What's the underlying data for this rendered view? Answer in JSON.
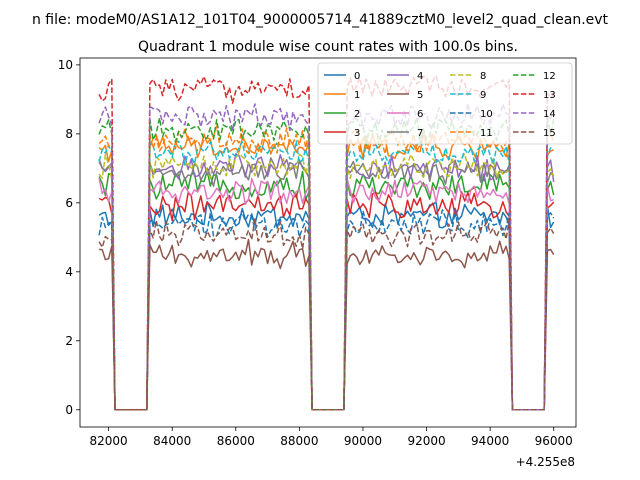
{
  "chart_data": {
    "type": "line",
    "suptitle": "n file: modeM0/AS1A12_101T04_9000005714_41889cztM0_level2_quad_clean.evt",
    "title": "Quadrant 1 module wise count rates with 100.0s bins.",
    "xlabel": "",
    "ylabel": "",
    "x_offset_label": "+4.255e8",
    "xlim": [
      81100,
      96700
    ],
    "ylim": [
      -0.5,
      10.2
    ],
    "xticks": [
      82000,
      84000,
      86000,
      88000,
      90000,
      92000,
      94000,
      96000
    ],
    "xtick_labels": [
      "82000",
      "84000",
      "86000",
      "88000",
      "90000",
      "92000",
      "94000",
      "96000"
    ],
    "yticks": [
      0,
      2,
      4,
      6,
      8,
      10
    ],
    "ytick_labels": [
      "0",
      "2",
      "4",
      "6",
      "8",
      "10"
    ],
    "time_profile": {
      "start": 81700,
      "end": 96050,
      "bin": 100,
      "gaps": [
        [
          82150,
          83250
        ],
        [
          88350,
          89500
        ],
        [
          94600,
          95750
        ]
      ]
    },
    "legend": {
      "location": "top-right",
      "columns": 4
    },
    "series": [
      {
        "name": "0",
        "level": 5.6,
        "color": "#1f77b4",
        "dash": "solid"
      },
      {
        "name": "1",
        "level": 7.6,
        "color": "#ff7f0e",
        "dash": "solid"
      },
      {
        "name": "2",
        "level": 6.5,
        "color": "#2ca02c",
        "dash": "solid"
      },
      {
        "name": "3",
        "level": 5.9,
        "color": "#d62728",
        "dash": "solid"
      },
      {
        "name": "4",
        "level": 7.0,
        "color": "#9467bd",
        "dash": "solid"
      },
      {
        "name": "5",
        "level": 4.5,
        "color": "#8c564b",
        "dash": "solid"
      },
      {
        "name": "6",
        "level": 6.3,
        "color": "#e377c2",
        "dash": "solid"
      },
      {
        "name": "7",
        "level": 6.9,
        "color": "#7f7f7f",
        "dash": "solid"
      },
      {
        "name": "8",
        "level": 7.1,
        "color": "#bcbd22",
        "dash": "dashed"
      },
      {
        "name": "9",
        "level": 7.5,
        "color": "#17becf",
        "dash": "dashed"
      },
      {
        "name": "10",
        "level": 5.4,
        "color": "#1f77b4",
        "dash": "dashed"
      },
      {
        "name": "11",
        "level": 7.8,
        "color": "#ff7f0e",
        "dash": "dashed"
      },
      {
        "name": "12",
        "level": 8.1,
        "color": "#2ca02c",
        "dash": "dashed"
      },
      {
        "name": "13",
        "level": 9.3,
        "color": "#d62728",
        "dash": "dashed"
      },
      {
        "name": "14",
        "level": 8.5,
        "color": "#9467bd",
        "dash": "dashed"
      },
      {
        "name": "15",
        "level": 5.1,
        "color": "#8c564b",
        "dash": "dashed"
      }
    ]
  }
}
